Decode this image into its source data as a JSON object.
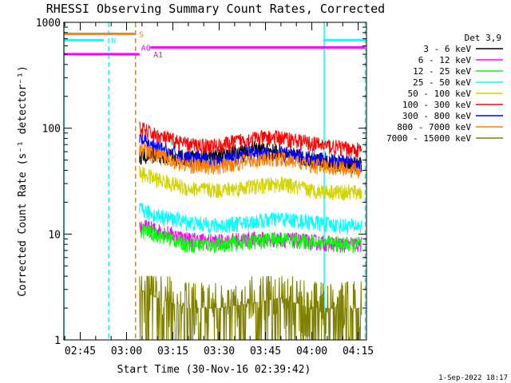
{
  "chart_data": {
    "type": "line",
    "title": "RHESSI Observing Summary Count Rates, Corrected",
    "xlabel": "Start Time (30-Nov-16 02:39:42)",
    "ylabel": "Corrected Count Rate (s⁻¹ detector⁻¹)",
    "yscale": "log",
    "ylim": [
      1,
      1000
    ],
    "xlim_minutes_after_start": [
      0,
      98
    ],
    "x_ticks": [
      "02:45",
      "03:00",
      "03:15",
      "03:30",
      "03:45",
      "04:00",
      "04:15"
    ],
    "y_ticks": [
      "1",
      "10",
      "100",
      "1000"
    ],
    "legend_title": "Det 3,9",
    "legend_position": "right",
    "series": [
      {
        "name": "3 - 6 keV",
        "color": "#000000",
        "t": [
          24.5,
          30,
          40,
          50,
          60,
          70,
          80,
          90,
          96.5
        ],
        "values": [
          55,
          55,
          53,
          55,
          65,
          60,
          50,
          45,
          45
        ]
      },
      {
        "name": "6 - 12 keV",
        "color": "#ff00ff",
        "t": [
          24.5,
          30,
          40,
          50,
          60,
          70,
          80,
          90,
          96.5
        ],
        "values": [
          12,
          11,
          9,
          8.5,
          9,
          9,
          8.5,
          8,
          8
        ]
      },
      {
        "name": "12 - 25 keV",
        "color": "#00ff00",
        "t": [
          24.5,
          30,
          40,
          50,
          60,
          70,
          80,
          90,
          96.5
        ],
        "values": [
          11,
          10,
          8,
          8,
          8.5,
          9,
          8.5,
          8,
          8
        ]
      },
      {
        "name": "25 - 50 keV",
        "color": "#00ffff",
        "t": [
          24.5,
          30,
          40,
          50,
          60,
          70,
          80,
          90,
          96.5
        ],
        "values": [
          17,
          15,
          13,
          12,
          13,
          14,
          13,
          12,
          12
        ]
      },
      {
        "name": "50 - 100 keV",
        "color": "#d4d400",
        "t": [
          24.5,
          30,
          40,
          50,
          60,
          70,
          80,
          90,
          96.5
        ],
        "values": [
          38,
          33,
          27,
          26,
          28,
          30,
          26,
          25,
          25
        ]
      },
      {
        "name": "100 - 300 keV",
        "color": "#ff0000",
        "t": [
          24.5,
          30,
          40,
          50,
          60,
          70,
          80,
          90,
          96.5
        ],
        "values": [
          100,
          85,
          70,
          68,
          80,
          82,
          72,
          65,
          62
        ]
      },
      {
        "name": "300 - 800 keV",
        "color": "#0000ff",
        "t": [
          24.5,
          30,
          40,
          50,
          60,
          70,
          80,
          90,
          96.5
        ],
        "values": [
          78,
          65,
          52,
          50,
          58,
          58,
          52,
          48,
          46
        ]
      },
      {
        "name": "800 - 7000 keV",
        "color": "#ff8000",
        "t": [
          24.5,
          30,
          40,
          50,
          60,
          70,
          80,
          90,
          96.5
        ],
        "values": [
          65,
          55,
          45,
          43,
          50,
          52,
          45,
          42,
          40
        ]
      },
      {
        "name": "7000 - 15000 keV",
        "color": "#808000",
        "t": [
          24.5,
          30,
          40,
          50,
          60,
          70,
          80,
          90,
          96.5
        ],
        "values": [
          3,
          2.5,
          2,
          2,
          2.2,
          2.5,
          2,
          2,
          2
        ]
      }
    ],
    "flags": [
      {
        "label": "S",
        "color": "#ff8000",
        "level": 780,
        "start": 0,
        "end": 23,
        "label_at": 24.3
      },
      {
        "label": "N",
        "color": "#00ffff",
        "level": 680,
        "start": 0,
        "end": 13,
        "label_at": 15.3
      },
      {
        "label": "N",
        "color": "#00ffff",
        "level": 680,
        "start": 84,
        "end": 97.5,
        "label_at": null
      },
      {
        "label": "A0",
        "color": "#ff00ff",
        "level": 580,
        "start": 28,
        "end": 97.5,
        "label_at": 25
      },
      {
        "label": "A1",
        "color": "#ff00ff",
        "level": 500,
        "start": 0,
        "end": 24.5,
        "label_at": 29
      }
    ],
    "vertical_lines": [
      {
        "t": 0,
        "color": "#00ffff",
        "style": "solid"
      },
      {
        "t": 14.5,
        "color": "#00ffff",
        "style": "dashed"
      },
      {
        "t": 23.2,
        "color": "#ff8000",
        "style": "dashed"
      },
      {
        "t": 84.3,
        "color": "#00ffff",
        "style": "solid"
      },
      {
        "t": 97.6,
        "color": "#00ffff",
        "style": "dashed"
      }
    ],
    "footer_date": "1-Sep-2022 18:17"
  }
}
